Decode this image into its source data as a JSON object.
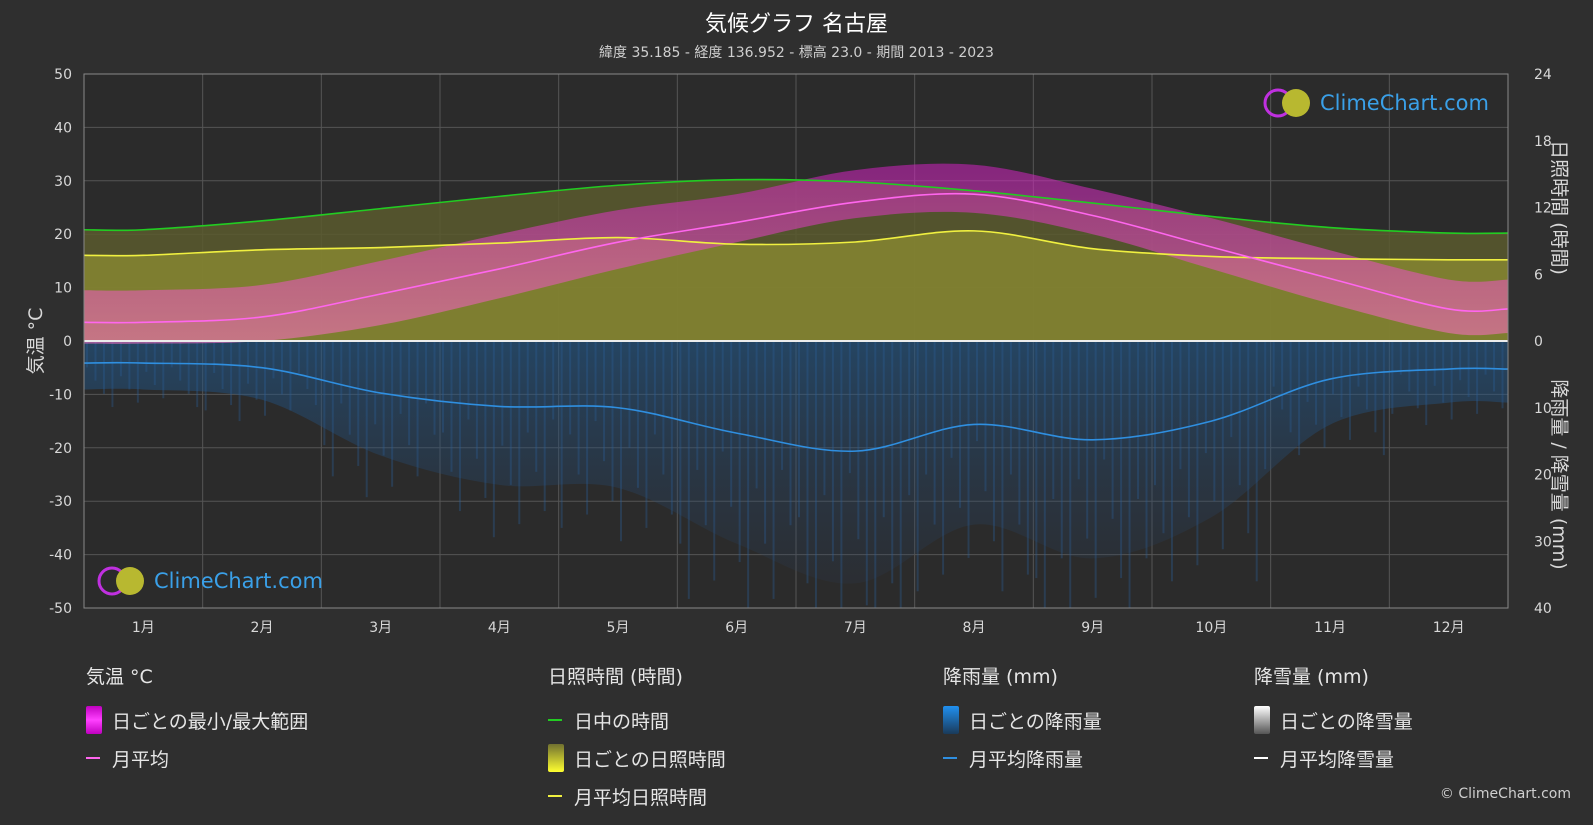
{
  "header": {
    "title": "気候グラフ 名古屋",
    "subtitle": "緯度 35.185 - 経度 136.952 - 標高 23.0 - 期間 2013 - 2023"
  },
  "colors": {
    "background": "#2f2f2f",
    "daylight": "#22cc22",
    "sunshine_avg": "#f0f040",
    "temp_avg": "#ff66ee",
    "rain_avg": "#2f8fe0",
    "snow_avg": "#ffffff",
    "temp_range": "#e040c8",
    "sunshine_daily": "#9a9a3a",
    "rain_daily": "#2a6ab0"
  },
  "chart_data": {
    "type": "line",
    "categories": [
      "1月",
      "2月",
      "3月",
      "4月",
      "5月",
      "6月",
      "7月",
      "8月",
      "9月",
      "10月",
      "11月",
      "12月"
    ],
    "left_axis": {
      "label": "気温 °C",
      "range": [
        -50,
        50
      ],
      "ticks": [
        50,
        40,
        30,
        20,
        10,
        0,
        -10,
        -20,
        -30,
        -40,
        -50
      ]
    },
    "right_axis_top": {
      "label": "日照時間 (時間)",
      "range": [
        0,
        24
      ],
      "ticks": [
        24,
        18,
        12,
        6,
        0
      ]
    },
    "right_axis_bottom": {
      "label": "降雨量 / 降雪量 (mm)",
      "range": [
        0,
        40
      ],
      "ticks": [
        0,
        10,
        20,
        30,
        40
      ]
    },
    "series": [
      {
        "name": "日中の時間",
        "axis": "hours",
        "values": [
          10.0,
          10.8,
          11.9,
          13.0,
          14.0,
          14.5,
          14.3,
          13.5,
          12.4,
          11.2,
          10.2,
          9.7
        ]
      },
      {
        "name": "月平均日照時間",
        "axis": "hours",
        "values": [
          7.7,
          8.2,
          8.4,
          8.8,
          9.3,
          8.7,
          8.9,
          9.9,
          8.3,
          7.6,
          7.4,
          7.3
        ]
      },
      {
        "name": "月平均",
        "axis": "temp",
        "values": [
          3.5,
          4.5,
          8.8,
          13.5,
          18.5,
          22.2,
          26.0,
          27.5,
          23.5,
          17.6,
          11.7,
          6.0
        ]
      },
      {
        "name": "月平均降雨量",
        "axis": "precip",
        "values": [
          3.3,
          4.0,
          7.8,
          9.8,
          10.0,
          13.8,
          16.5,
          12.5,
          14.8,
          12.0,
          5.7,
          4.2
        ]
      },
      {
        "name": "月平均降雪量",
        "axis": "precip",
        "values": [
          0,
          0,
          0,
          0,
          0,
          0,
          0,
          0,
          0,
          0,
          0,
          0
        ]
      }
    ],
    "bands": {
      "temp_range": {
        "name": "日ごとの最小/最大範囲",
        "min": [
          -0.5,
          0.0,
          3.0,
          8.0,
          13.5,
          18.5,
          23.0,
          24.0,
          20.0,
          13.5,
          7.0,
          1.5
        ],
        "max": [
          9.5,
          10.5,
          15.0,
          20.0,
          24.5,
          27.5,
          32.0,
          33.0,
          28.5,
          23.0,
          17.0,
          11.5
        ]
      },
      "sunshine_daily": {
        "name": "日ごとの日照時間",
        "values": [
          7.7,
          8.2,
          8.4,
          8.8,
          9.3,
          8.7,
          8.9,
          9.9,
          8.3,
          7.6,
          7.4,
          7.3
        ]
      }
    },
    "grid": true
  },
  "legend": {
    "groups": [
      {
        "title": "気温 °C",
        "items": [
          {
            "label": "日ごとの最小/最大範囲"
          },
          {
            "label": "月平均"
          }
        ]
      },
      {
        "title": "日照時間 (時間)",
        "items": [
          {
            "label": "日中の時間"
          },
          {
            "label": "日ごとの日照時間"
          },
          {
            "label": "月平均日照時間"
          }
        ]
      },
      {
        "title": "降雨量 (mm)",
        "items": [
          {
            "label": "日ごとの降雨量"
          },
          {
            "label": "月平均降雨量"
          }
        ]
      },
      {
        "title": "降雪量 (mm)",
        "items": [
          {
            "label": "日ごとの降雪量"
          },
          {
            "label": "月平均降雪量"
          }
        ]
      }
    ]
  },
  "branding": {
    "logo_text": "ClimeChart.com",
    "copyright": "© ClimeChart.com"
  }
}
